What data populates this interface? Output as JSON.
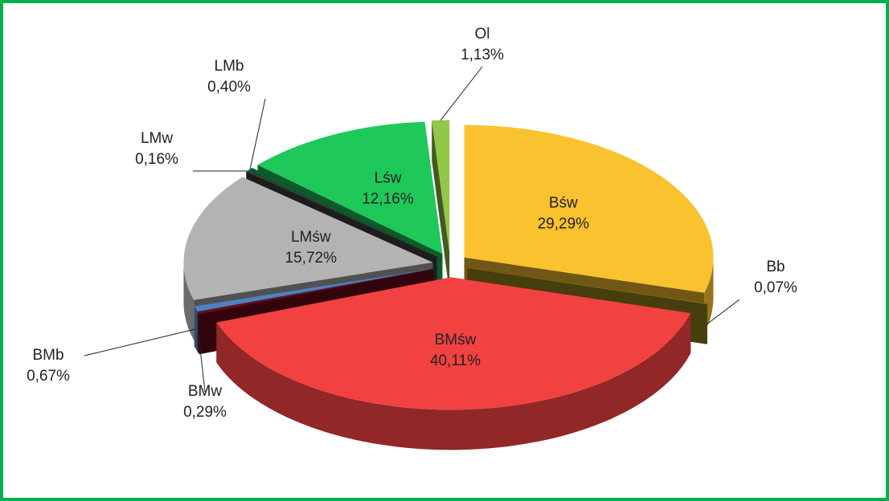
{
  "chart_data": {
    "type": "pie",
    "categories": [
      "Bśw",
      "Bb",
      "BMśw",
      "BMw",
      "BMb",
      "LMśw",
      "LMw",
      "LMb",
      "Lśw",
      "Ol"
    ],
    "values": [
      29.29,
      0.07,
      40.11,
      0.29,
      0.67,
      15.72,
      0.16,
      0.4,
      12.16,
      1.13
    ],
    "value_labels": [
      "29,29%",
      "0,07%",
      "40,11%",
      "0,29%",
      "0,67%",
      "15,72%",
      "0,16%",
      "0,40%",
      "12,16%",
      "1,13%"
    ],
    "colors": [
      "#f9c22e",
      "#9c8a1a",
      "#f24141",
      "#6e0a1a",
      "#4f81bd",
      "#b3b3b3",
      "#404040",
      "#0b5c2e",
      "#1ec95a",
      "#92c847"
    ]
  }
}
